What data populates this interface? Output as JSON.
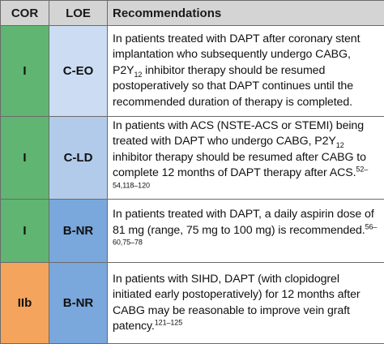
{
  "headers": {
    "cor": "COR",
    "loe": "LOE",
    "recommendations": "Recommendations"
  },
  "colors": {
    "cor_I": "#5fb571",
    "cor_IIb": "#f4a45c",
    "loe_C-EO": "#ccdcf2",
    "loe_C-LD": "#b2cbeb",
    "loe_B-NR": "#7aa7dc",
    "header_bg": "#d4d4d4"
  },
  "rows": [
    {
      "cor": "I",
      "loe": "C-EO",
      "rec": {
        "part1": "In patients treated with DAPT after coronary stent implantation who subsequently undergo CABG, P2Y",
        "sub": "12",
        "part2": " inhibitor therapy should be resumed postoperatively so that DAPT continues until the recommended duration of therapy is completed.",
        "refs": ""
      }
    },
    {
      "cor": "I",
      "loe": "C-LD",
      "rec": {
        "part1": "In patients with ACS (NSTE-ACS or STEMI) being treated with DAPT who undergo CABG, P2Y",
        "sub": "12",
        "part2": " inhibitor therapy should be resumed after CABG to complete 12 months of DAPT therapy after ACS.",
        "refs": "52–54,118–120"
      }
    },
    {
      "cor": "I",
      "loe": "B-NR",
      "rec": {
        "part1": "In patients treated with DAPT, a daily aspirin dose of 81 mg (range, 75 mg to 100 mg) is recommended.",
        "sub": "",
        "part2": "",
        "refs": "56–60,75–78"
      }
    },
    {
      "cor": "IIb",
      "loe": "B-NR",
      "rec": {
        "part1": "In patients with SIHD, DAPT (with clopidogrel initiated early postoperatively) for 12 months after CABG may be reasonable to improve vein graft patency.",
        "sub": "",
        "part2": "",
        "refs": "121–125"
      }
    }
  ]
}
